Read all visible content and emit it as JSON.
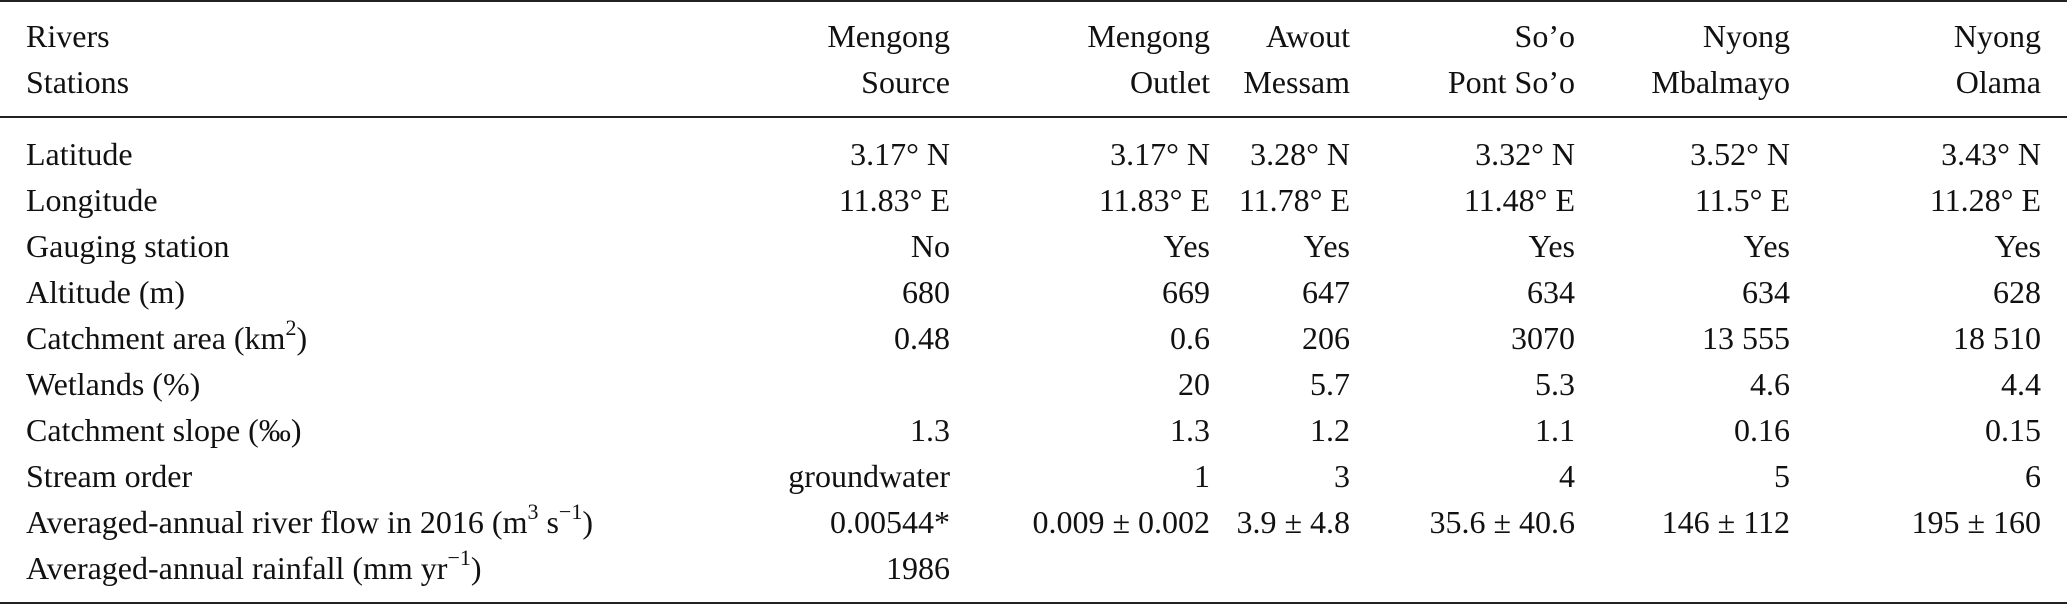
{
  "table": {
    "header_row1": [
      "Rivers",
      "Mengong",
      "Mengong",
      "Awout",
      "So’o",
      "Nyong",
      "Nyong"
    ],
    "header_row2": [
      "Stations",
      "Source",
      "Outlet",
      "Messam",
      "Pont So’o",
      "Mbalmayo",
      "Olama"
    ],
    "rows": [
      {
        "label": "Latitude",
        "values": [
          "3.17° N",
          "3.17° N",
          "3.28° N",
          "3.32° N",
          "3.52° N",
          "3.43° N"
        ]
      },
      {
        "label": "Longitude",
        "values": [
          "11.83° E",
          "11.83° E",
          "11.78° E",
          "11.48° E",
          "11.5° E",
          "11.28° E"
        ]
      },
      {
        "label": "Gauging station",
        "values": [
          "No",
          "Yes",
          "Yes",
          "Yes",
          "Yes",
          "Yes"
        ]
      },
      {
        "label": "Altitude (m)",
        "values": [
          "680",
          "669",
          "647",
          "634",
          "634",
          "628"
        ]
      },
      {
        "label": "Catchment area (km",
        "label_sup": "2",
        "label_tail": ")",
        "values": [
          "0.48",
          "0.6",
          "206",
          "3070",
          "13 555",
          "18 510"
        ]
      },
      {
        "label": "Wetlands (%)",
        "values": [
          "",
          "20",
          "5.7",
          "5.3",
          "4.6",
          "4.4"
        ]
      },
      {
        "label": "Catchment slope (‰)",
        "values": [
          "1.3",
          "1.3",
          "1.2",
          "1.1",
          "0.16",
          "0.15"
        ]
      },
      {
        "label": "Stream order",
        "values": [
          "groundwater",
          "1",
          "3",
          "4",
          "5",
          "6"
        ]
      },
      {
        "label": "Averaged-annual river flow in 2016 (m",
        "label_sup": "3",
        "label_mid": " s",
        "label_sup2": "−1",
        "label_tail": ")",
        "values": [
          "0.00544*",
          "0.009 ± 0.002",
          "3.9 ± 4.8",
          "35.6 ± 40.6",
          "146 ± 112",
          "195 ± 160"
        ]
      },
      {
        "label": "Averaged-annual rainfall (mm yr",
        "label_sup": "−1",
        "label_tail": ")",
        "values": [
          "1986",
          "",
          "",
          "",
          "",
          ""
        ]
      }
    ]
  }
}
